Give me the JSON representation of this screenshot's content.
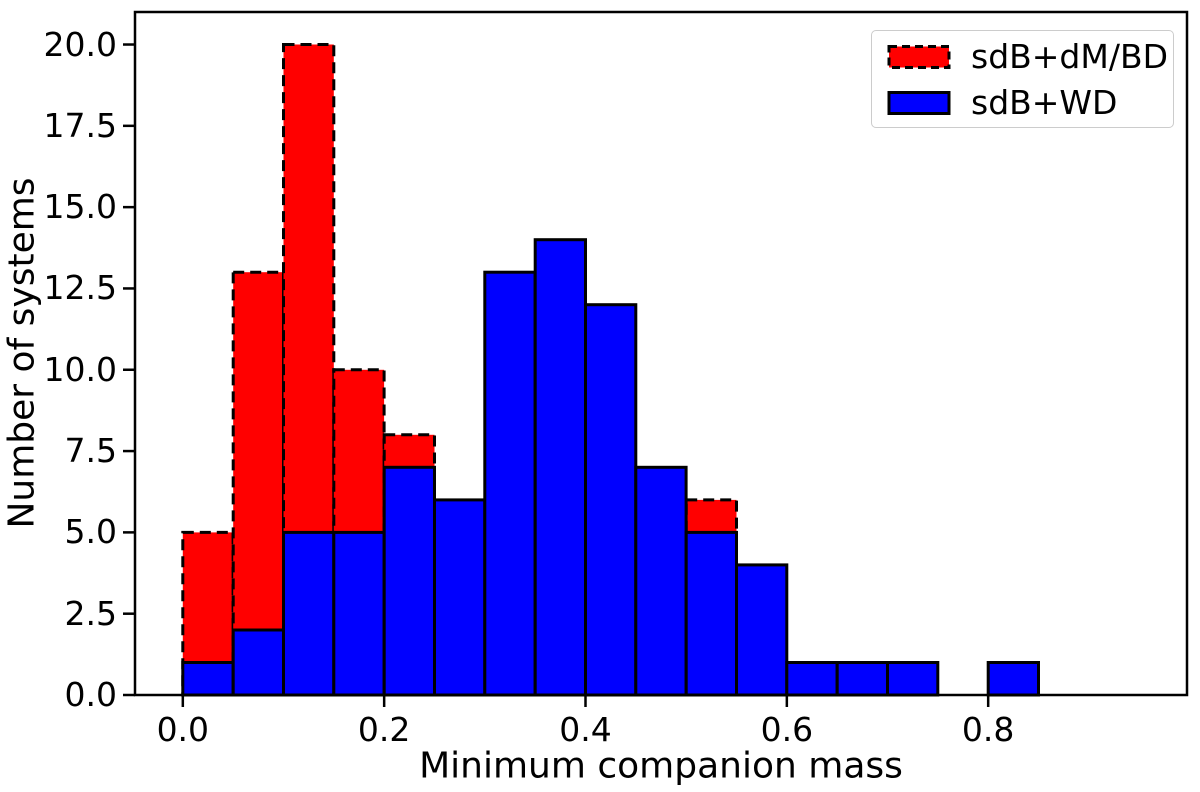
{
  "chart_data": {
    "type": "bar",
    "subtype": "overlapping-histogram",
    "title": "",
    "xlabel": "Minimum companion mass",
    "ylabel": "Number of systems",
    "bin_start": 0.0,
    "bin_width": 0.05,
    "bin_edges": [
      0.0,
      0.05,
      0.1,
      0.15,
      0.2,
      0.25,
      0.3,
      0.35,
      0.4,
      0.45,
      0.5,
      0.55,
      0.6,
      0.65,
      0.7,
      0.75,
      0.8,
      0.85,
      0.9,
      0.95
    ],
    "series": [
      {
        "name": "sdB+dM/BD",
        "fill_color": "#ff0000",
        "edge_color": "#000000",
        "edge_style": "dashed",
        "values": [
          5,
          13,
          20,
          10,
          8,
          0,
          0,
          0,
          0,
          0,
          6,
          0,
          0,
          0,
          0,
          0,
          0,
          0,
          0
        ]
      },
      {
        "name": "sdB+WD",
        "fill_color": "#0000ff",
        "edge_color": "#000000",
        "edge_style": "solid",
        "values": [
          1,
          2,
          5,
          5,
          7,
          6,
          13,
          14,
          12,
          7,
          5,
          4,
          1,
          1,
          1,
          0,
          1,
          0,
          0
        ]
      }
    ],
    "xlim": [
      -0.0475,
      0.9975
    ],
    "ylim": [
      0,
      21
    ],
    "x_ticks": [
      0.0,
      0.2,
      0.4,
      0.6,
      0.8
    ],
    "x_tick_labels": [
      "0.0",
      "0.2",
      "0.4",
      "0.6",
      "0.8"
    ],
    "y_ticks": [
      0,
      2.5,
      5,
      7.5,
      10,
      12.5,
      15,
      17.5,
      20
    ],
    "y_tick_labels": [
      "0.0",
      "2.5",
      "5.0",
      "7.5",
      "10.0",
      "12.5",
      "15.0",
      "17.5",
      "20.0"
    ],
    "grid": false,
    "legend_position": "upper right",
    "colors": {
      "background": "#ffffff",
      "axis": "#000000",
      "legend_border": "#cccccc"
    }
  }
}
